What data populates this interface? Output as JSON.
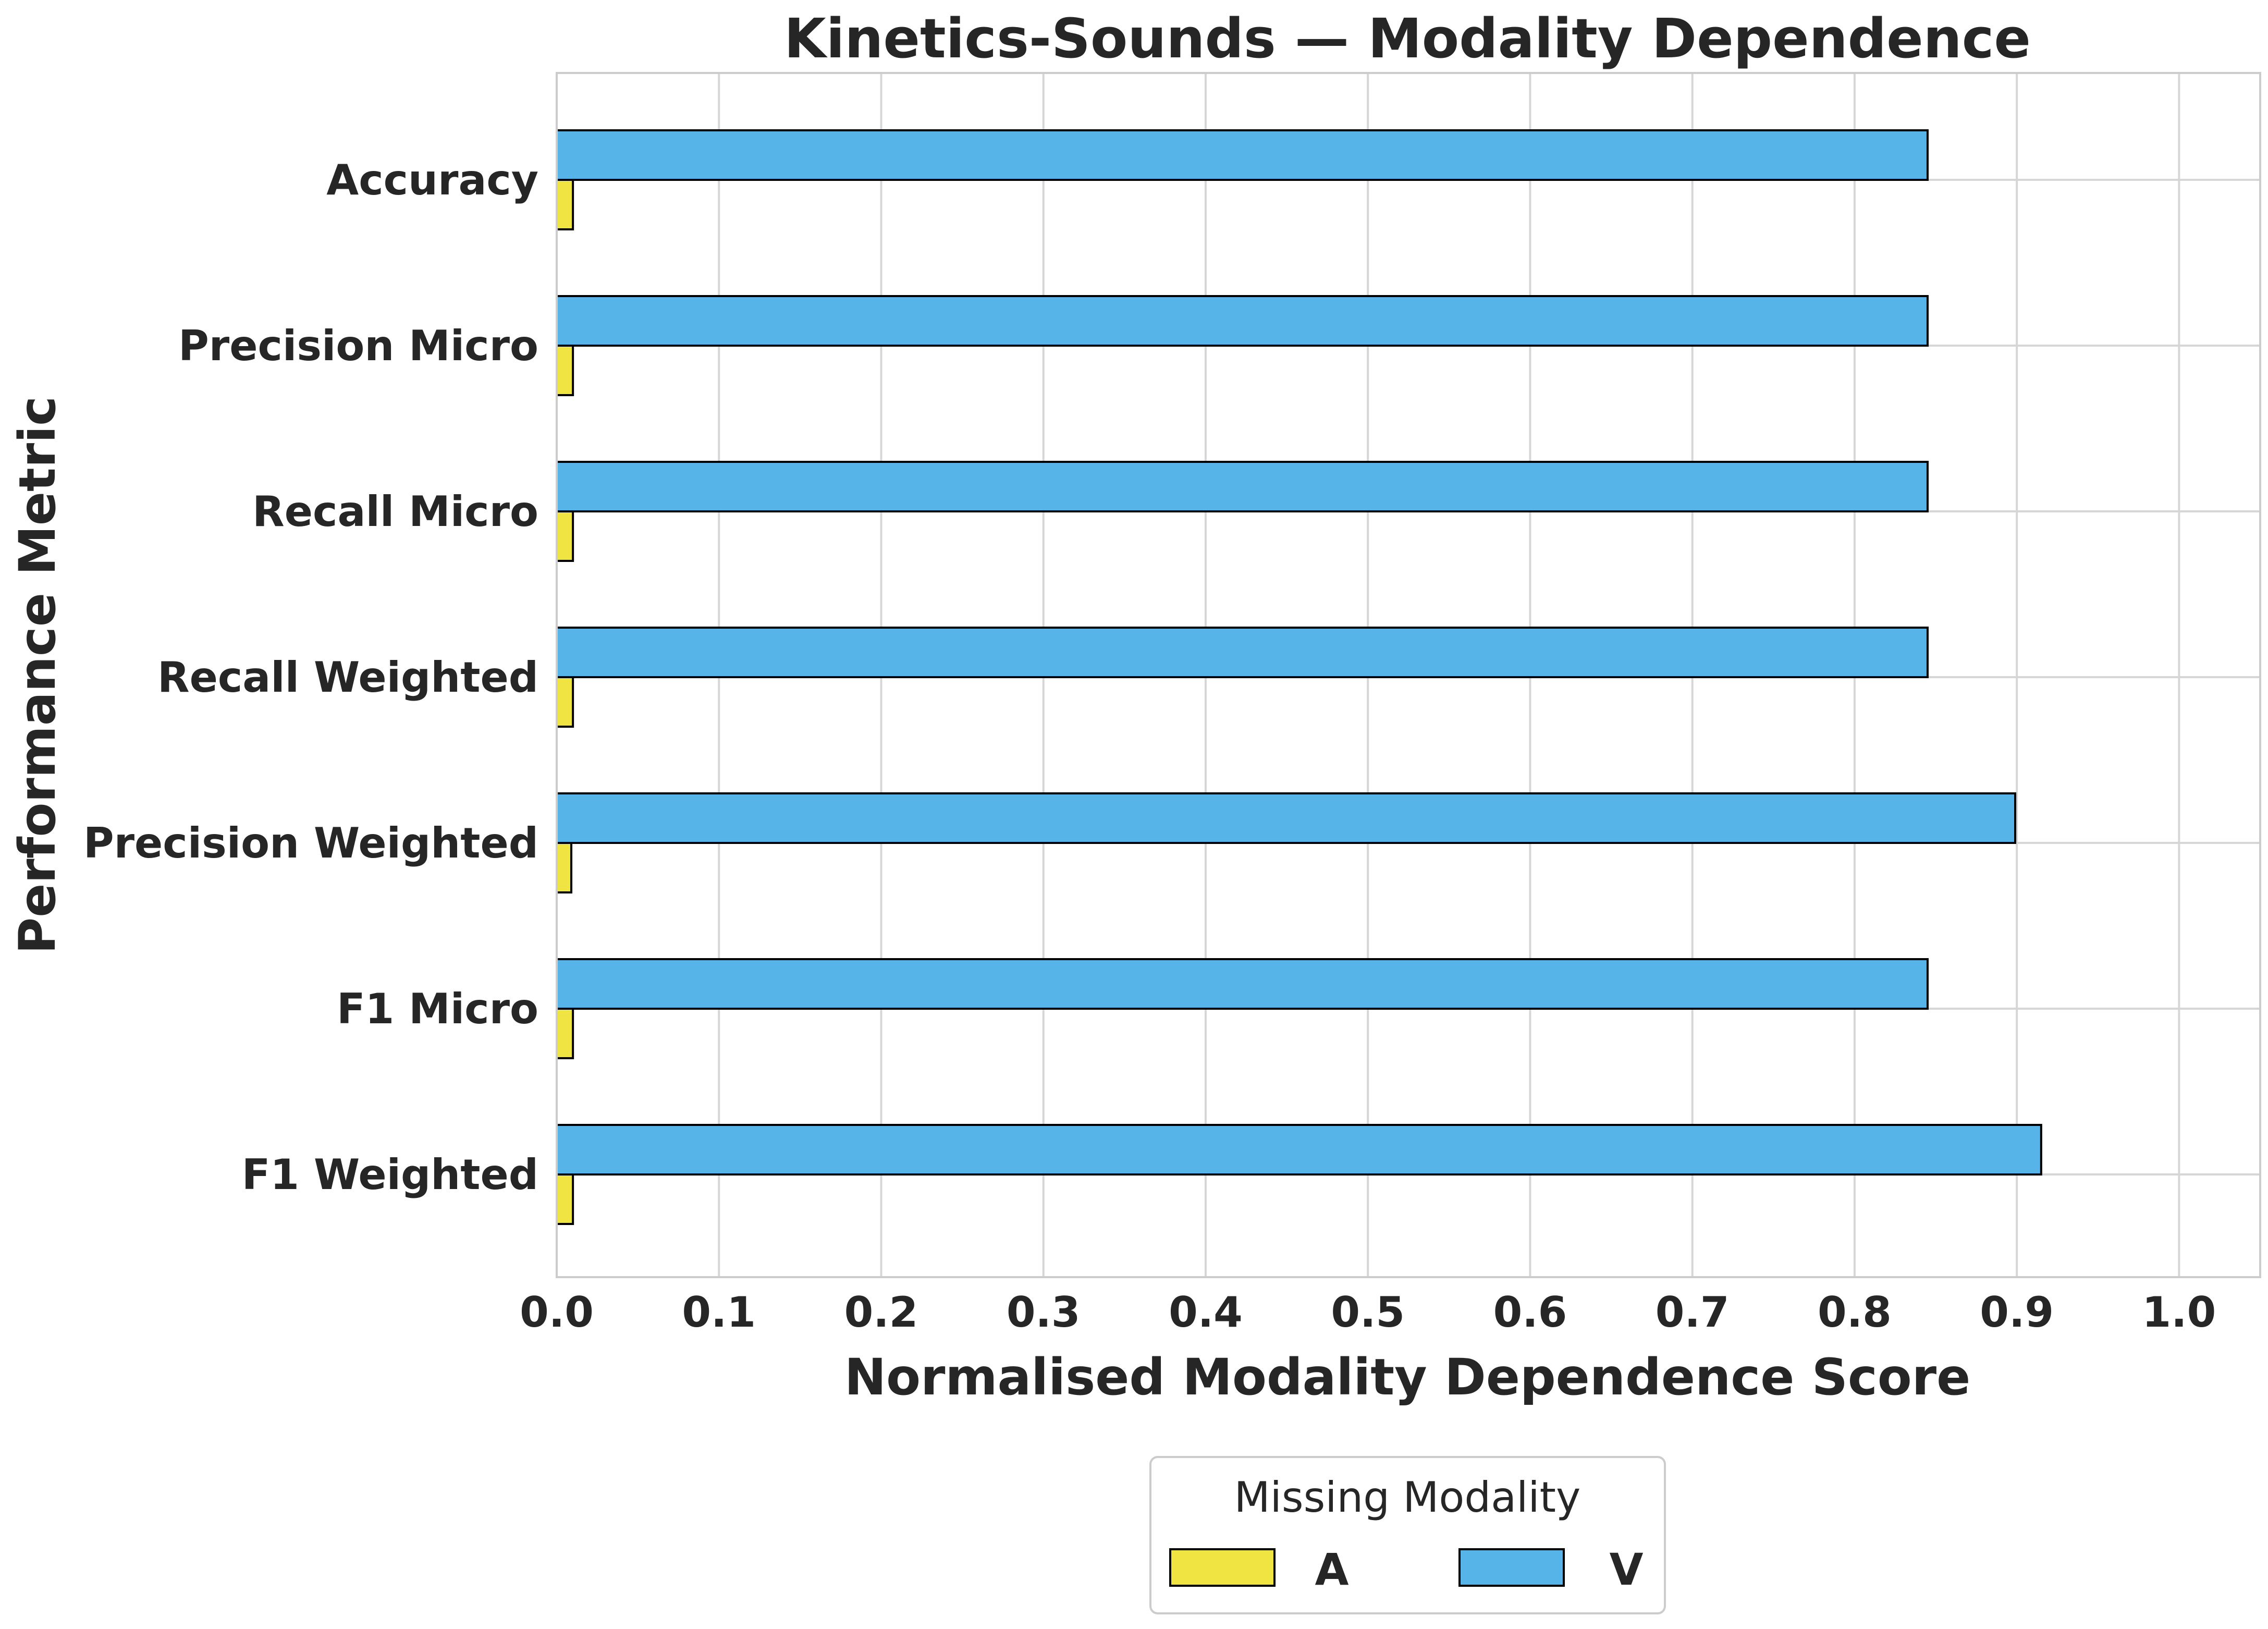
{
  "chart_data": {
    "type": "bar",
    "orientation": "horizontal",
    "title": "Kinetics-Sounds — Modality Dependence",
    "xlabel": "Normalised Modality Dependence Score",
    "ylabel": "Performance Metric",
    "xlim": [
      0,
      1.05
    ],
    "xticks": [
      "0.0",
      "0.1",
      "0.2",
      "0.3",
      "0.4",
      "0.5",
      "0.6",
      "0.7",
      "0.8",
      "0.9",
      "1.0"
    ],
    "grid": true,
    "categories": [
      "Accuracy",
      "Precision Micro",
      "Recall Micro",
      "Recall Weighted",
      "Precision Weighted",
      "F1 Micro",
      "F1 Weighted"
    ],
    "series": [
      {
        "name": "A",
        "color": "#f0e442",
        "values": [
          0.01,
          0.01,
          0.01,
          0.01,
          0.009,
          0.01,
          0.01
        ]
      },
      {
        "name": "V",
        "color": "#56b4e9",
        "values": [
          0.845,
          0.845,
          0.845,
          0.845,
          0.899,
          0.845,
          0.915
        ]
      }
    ],
    "legend": {
      "title": "Missing Modality",
      "placement": "bottom-center"
    }
  }
}
